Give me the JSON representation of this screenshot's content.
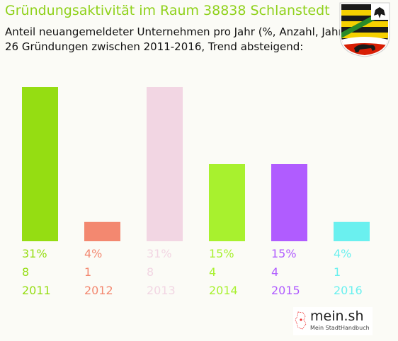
{
  "header": {
    "title": "Gründungsaktivität im Raum 38838 Schlanstedt",
    "subtitle_line1": "Anteil neuangemeldeter Unternehmen pro Jahr (%, Anzahl, Jahr)",
    "subtitle_line2": "26 Gründungen zwischen 2011-2016, Trend absteigend:"
  },
  "chart_data": {
    "type": "bar",
    "categories": [
      "2011",
      "2012",
      "2013",
      "2014",
      "2015",
      "2016"
    ],
    "values": [
      8,
      1,
      8,
      4,
      4,
      1
    ],
    "percent_labels": [
      "31%",
      "4%",
      "31%",
      "15%",
      "15%",
      "4%"
    ],
    "colors": [
      "#95dd12",
      "#f38870",
      "#f2d6e3",
      "#a8f12e",
      "#b05cff",
      "#6af0ef"
    ],
    "ylim": [
      0,
      8
    ],
    "grid": false,
    "legend": "none"
  },
  "logo": {
    "name": "mein.sh",
    "tagline": "Mein StadtHandbuch"
  },
  "emblem": "coat-of-arms-icon"
}
